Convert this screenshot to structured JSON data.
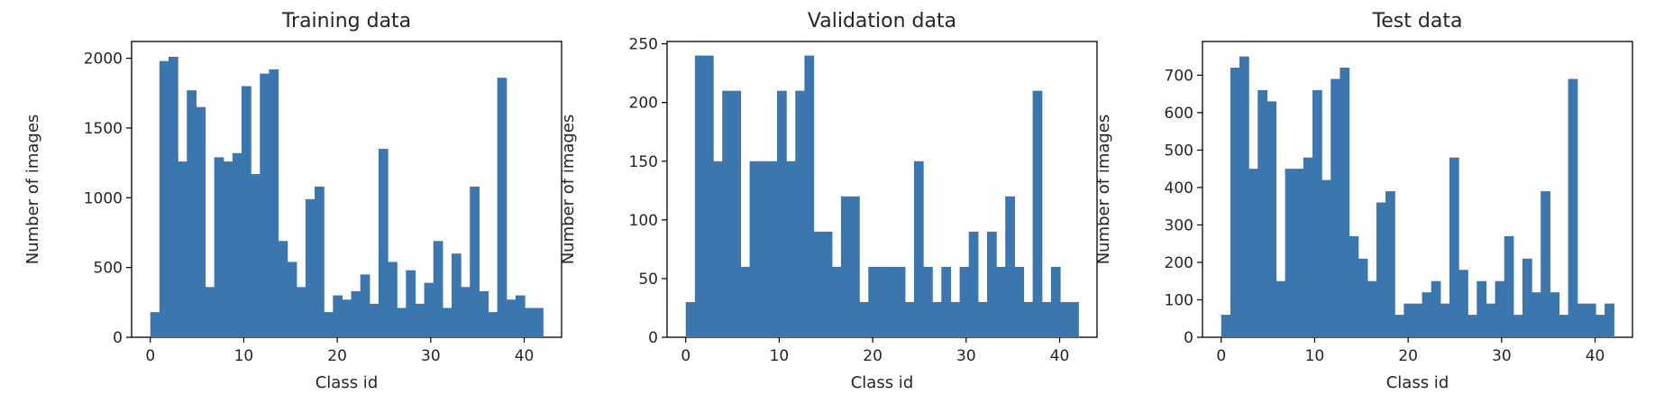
{
  "chart_data": [
    {
      "type": "bar",
      "title": "Training data",
      "xlabel": "Class id",
      "ylabel": "Number of images",
      "xlim": [
        -2,
        44
      ],
      "ylim": [
        0,
        2120
      ],
      "xticks": [
        0,
        10,
        20,
        30,
        40
      ],
      "yticks": [
        0,
        500,
        1000,
        1500,
        2000
      ],
      "bar_color": "#3b76af",
      "categories": [
        0,
        1,
        2,
        3,
        4,
        5,
        6,
        7,
        8,
        9,
        10,
        11,
        12,
        13,
        14,
        15,
        16,
        17,
        18,
        19,
        20,
        21,
        22,
        23,
        24,
        25,
        26,
        27,
        28,
        29,
        30,
        31,
        32,
        33,
        34,
        35,
        36,
        37,
        38,
        39,
        40,
        41,
        42
      ],
      "values": [
        180,
        1980,
        2010,
        1260,
        1770,
        1650,
        360,
        1290,
        1260,
        1320,
        1800,
        1170,
        1890,
        1920,
        690,
        540,
        360,
        990,
        1080,
        180,
        300,
        270,
        330,
        450,
        240,
        1350,
        540,
        210,
        480,
        240,
        390,
        690,
        210,
        600,
        360,
        1080,
        330,
        180,
        1860,
        270,
        300,
        210,
        210
      ]
    },
    {
      "type": "bar",
      "title": "Validation data",
      "xlabel": "Class id",
      "ylabel": "Number of images",
      "xlim": [
        -2,
        44
      ],
      "ylim": [
        0,
        252
      ],
      "xticks": [
        0,
        10,
        20,
        30,
        40
      ],
      "yticks": [
        0,
        50,
        100,
        150,
        200,
        250
      ],
      "bar_color": "#3b76af",
      "categories": [
        0,
        1,
        2,
        3,
        4,
        5,
        6,
        7,
        8,
        9,
        10,
        11,
        12,
        13,
        14,
        15,
        16,
        17,
        18,
        19,
        20,
        21,
        22,
        23,
        24,
        25,
        26,
        27,
        28,
        29,
        30,
        31,
        32,
        33,
        34,
        35,
        36,
        37,
        38,
        39,
        40,
        41,
        42
      ],
      "values": [
        30,
        240,
        240,
        150,
        210,
        210,
        60,
        150,
        150,
        150,
        210,
        150,
        210,
        240,
        90,
        90,
        60,
        120,
        120,
        30,
        60,
        60,
        60,
        60,
        30,
        150,
        60,
        30,
        60,
        30,
        60,
        90,
        30,
        90,
        60,
        120,
        60,
        30,
        210,
        30,
        60,
        30,
        30
      ]
    },
    {
      "type": "bar",
      "title": "Test data",
      "xlabel": "Class id",
      "ylabel": "Number of images",
      "xlim": [
        -2,
        44
      ],
      "ylim": [
        0,
        790
      ],
      "xticks": [
        0,
        10,
        20,
        30,
        40
      ],
      "yticks": [
        0,
        100,
        200,
        300,
        400,
        500,
        600,
        700
      ],
      "bar_color": "#3b76af",
      "categories": [
        0,
        1,
        2,
        3,
        4,
        5,
        6,
        7,
        8,
        9,
        10,
        11,
        12,
        13,
        14,
        15,
        16,
        17,
        18,
        19,
        20,
        21,
        22,
        23,
        24,
        25,
        26,
        27,
        28,
        29,
        30,
        31,
        32,
        33,
        34,
        35,
        36,
        37,
        38,
        39,
        40,
        41,
        42
      ],
      "values": [
        60,
        720,
        750,
        450,
        660,
        630,
        150,
        450,
        450,
        480,
        660,
        420,
        690,
        720,
        270,
        210,
        150,
        360,
        390,
        60,
        90,
        90,
        120,
        150,
        90,
        480,
        180,
        60,
        150,
        90,
        150,
        270,
        60,
        210,
        120,
        390,
        120,
        60,
        690,
        90,
        90,
        60,
        90
      ]
    }
  ]
}
